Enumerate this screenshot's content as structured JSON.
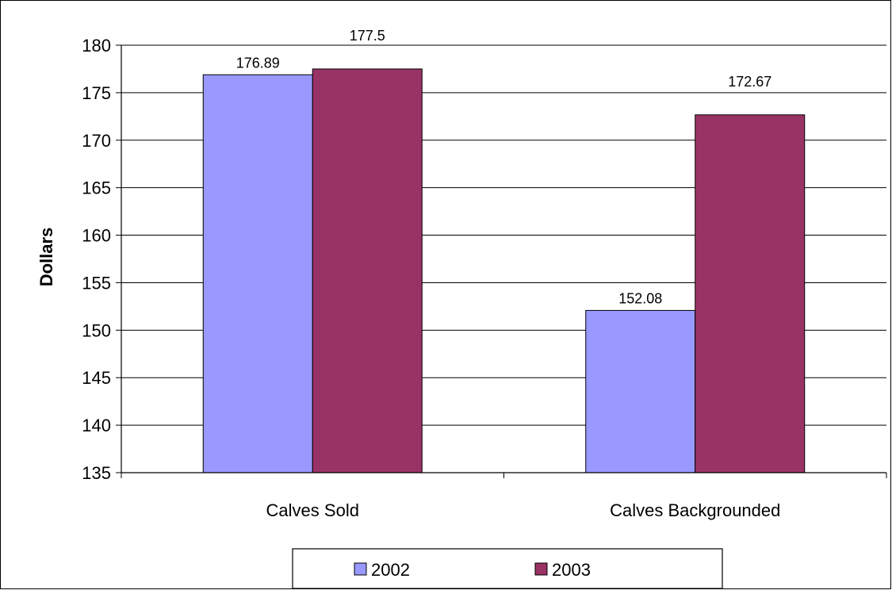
{
  "chart_data": {
    "type": "bar",
    "title": "",
    "xlabel": "",
    "ylabel": "Dollars",
    "categories": [
      "Calves Sold",
      "Calves Backgrounded"
    ],
    "series": [
      {
        "name": "2002",
        "values": [
          176.89,
          152.08
        ],
        "labels": [
          "176.89",
          "152.08"
        ],
        "color": "#9999ff"
      },
      {
        "name": "2003",
        "values": [
          177.5,
          172.67
        ],
        "labels": [
          "177.5",
          "172.67"
        ],
        "color": "#993366"
      }
    ],
    "ylim": [
      135,
      180
    ],
    "yticks": [
      135,
      140,
      145,
      150,
      155,
      160,
      165,
      170,
      175,
      180
    ],
    "grid": true,
    "legend_position": "bottom"
  }
}
